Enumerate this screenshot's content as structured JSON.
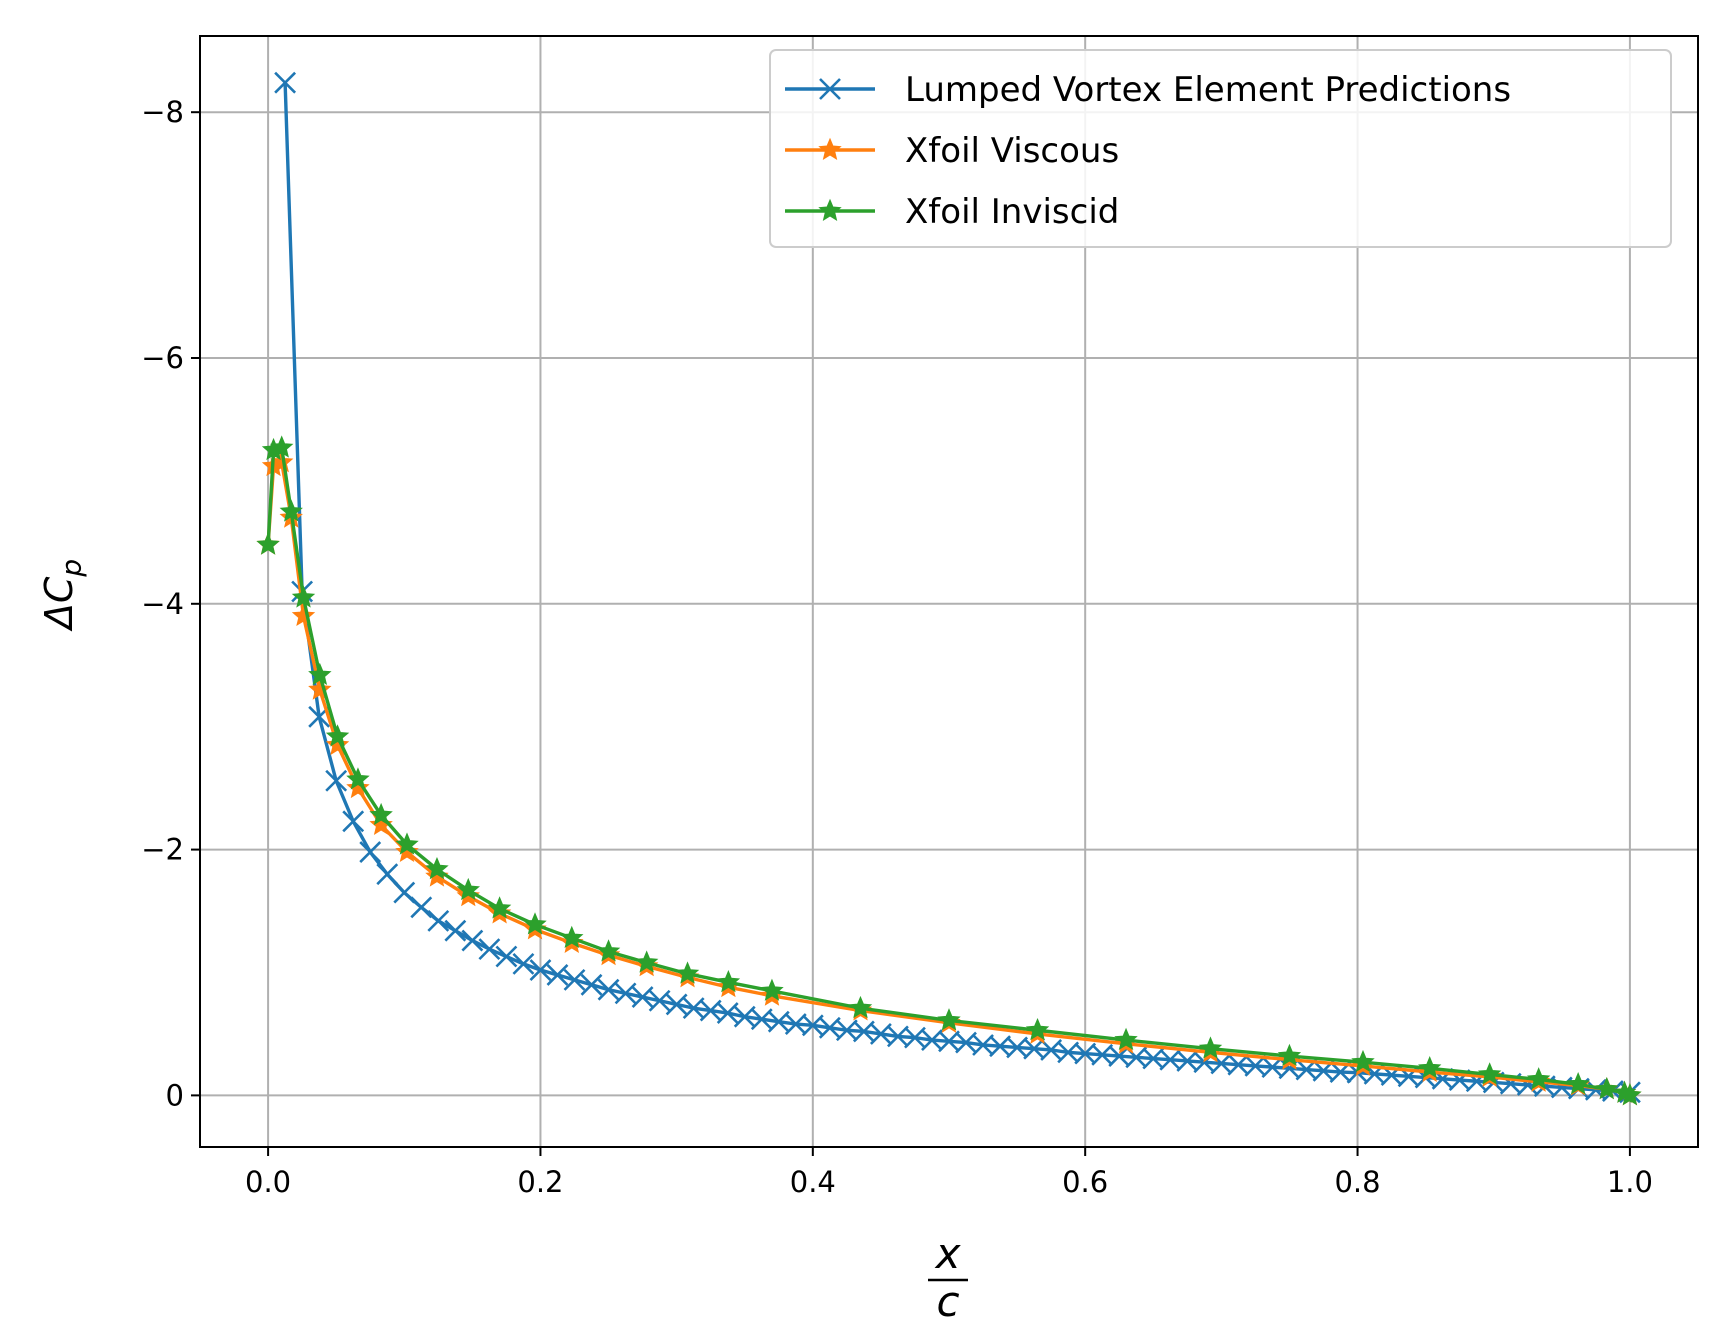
{
  "chart_data": {
    "type": "line",
    "title": "",
    "xlabel": {
      "numerator": "x",
      "denominator": "c"
    },
    "ylabel": {
      "main": "ΔC",
      "subscript": "p"
    },
    "xlim": [
      -0.05,
      1.05
    ],
    "ylim": [
      0.42,
      -8.62
    ],
    "y_inverted": true,
    "x_ticks": [
      0.0,
      0.2,
      0.4,
      0.6,
      0.8,
      1.0
    ],
    "x_tick_labels": [
      "0.0",
      "0.2",
      "0.4",
      "0.6",
      "0.8",
      "1.0"
    ],
    "y_ticks": [
      0,
      -2,
      -4,
      -6,
      -8
    ],
    "y_tick_labels": [
      "0",
      "−2",
      "−4",
      "−6",
      "−8"
    ],
    "grid": true,
    "legend_position": "top-right",
    "series": [
      {
        "name": "Lumped Vortex Element Predictions",
        "color": "#1f77b4",
        "marker": "x",
        "x": [
          0.0125,
          0.025,
          0.0375,
          0.05,
          0.0625,
          0.075,
          0.0875,
          0.1,
          0.1125,
          0.125,
          0.1375,
          0.15,
          0.1625,
          0.175,
          0.1875,
          0.2,
          0.2125,
          0.225,
          0.2375,
          0.25,
          0.2625,
          0.275,
          0.2875,
          0.3,
          0.3125,
          0.325,
          0.3375,
          0.35,
          0.3625,
          0.375,
          0.3875,
          0.4,
          0.4125,
          0.425,
          0.4375,
          0.45,
          0.4625,
          0.475,
          0.4875,
          0.5,
          0.5125,
          0.525,
          0.5375,
          0.55,
          0.5625,
          0.575,
          0.5875,
          0.6,
          0.6125,
          0.625,
          0.6375,
          0.65,
          0.6625,
          0.675,
          0.6875,
          0.7,
          0.7125,
          0.725,
          0.7375,
          0.75,
          0.7625,
          0.775,
          0.7875,
          0.8,
          0.8125,
          0.825,
          0.8375,
          0.85,
          0.8625,
          0.875,
          0.8875,
          0.9,
          0.9125,
          0.925,
          0.9375,
          0.95,
          0.9625,
          0.975,
          0.9875,
          1.0
        ],
        "y": [
          -8.24,
          -4.1,
          -3.08,
          -2.56,
          -2.23,
          -1.98,
          -1.8,
          -1.65,
          -1.53,
          -1.42,
          -1.34,
          -1.26,
          -1.19,
          -1.13,
          -1.07,
          -1.02,
          -0.98,
          -0.94,
          -0.9,
          -0.86,
          -0.83,
          -0.8,
          -0.77,
          -0.74,
          -0.71,
          -0.69,
          -0.67,
          -0.64,
          -0.62,
          -0.6,
          -0.58,
          -0.57,
          -0.55,
          -0.53,
          -0.52,
          -0.5,
          -0.48,
          -0.47,
          -0.45,
          -0.44,
          -0.43,
          -0.41,
          -0.4,
          -0.39,
          -0.38,
          -0.37,
          -0.35,
          -0.34,
          -0.33,
          -0.32,
          -0.31,
          -0.3,
          -0.29,
          -0.28,
          -0.27,
          -0.26,
          -0.25,
          -0.24,
          -0.23,
          -0.22,
          -0.21,
          -0.2,
          -0.19,
          -0.185,
          -0.175,
          -0.165,
          -0.155,
          -0.145,
          -0.135,
          -0.125,
          -0.115,
          -0.105,
          -0.095,
          -0.085,
          -0.075,
          -0.065,
          -0.055,
          -0.045,
          -0.035,
          -0.025
        ]
      },
      {
        "name": "Xfoil Viscous",
        "color": "#ff7f0e",
        "marker": "star",
        "x": [
          0.0,
          0.004,
          0.01,
          0.017,
          0.026,
          0.038,
          0.051,
          0.066,
          0.083,
          0.102,
          0.124,
          0.147,
          0.17,
          0.196,
          0.223,
          0.25,
          0.278,
          0.308,
          0.338,
          0.37,
          0.435,
          0.5,
          0.565,
          0.63,
          0.692,
          0.75,
          0.804,
          0.853,
          0.897,
          0.933,
          0.962,
          0.983,
          0.996,
          1.0
        ],
        "y": [
          -4.48,
          -5.12,
          -5.15,
          -4.7,
          -3.9,
          -3.3,
          -2.85,
          -2.5,
          -2.2,
          -1.98,
          -1.78,
          -1.62,
          -1.48,
          -1.35,
          -1.24,
          -1.14,
          -1.05,
          -0.96,
          -0.88,
          -0.81,
          -0.69,
          -0.59,
          -0.5,
          -0.42,
          -0.35,
          -0.29,
          -0.24,
          -0.19,
          -0.15,
          -0.11,
          -0.08,
          -0.05,
          -0.02,
          0.0
        ]
      },
      {
        "name": "Xfoil Inviscid",
        "color": "#2ca02c",
        "marker": "star",
        "x": [
          0.0,
          0.004,
          0.01,
          0.017,
          0.026,
          0.038,
          0.051,
          0.066,
          0.083,
          0.102,
          0.124,
          0.147,
          0.17,
          0.196,
          0.223,
          0.25,
          0.278,
          0.308,
          0.338,
          0.37,
          0.435,
          0.5,
          0.565,
          0.63,
          0.692,
          0.75,
          0.804,
          0.853,
          0.897,
          0.933,
          0.962,
          0.983,
          0.996,
          1.0
        ],
        "y": [
          -4.48,
          -5.25,
          -5.27,
          -4.75,
          -4.05,
          -3.42,
          -2.92,
          -2.57,
          -2.28,
          -2.04,
          -1.84,
          -1.67,
          -1.52,
          -1.39,
          -1.28,
          -1.17,
          -1.08,
          -0.99,
          -0.92,
          -0.85,
          -0.71,
          -0.61,
          -0.53,
          -0.45,
          -0.38,
          -0.32,
          -0.27,
          -0.22,
          -0.17,
          -0.13,
          -0.09,
          -0.05,
          -0.02,
          0.0
        ]
      }
    ]
  }
}
